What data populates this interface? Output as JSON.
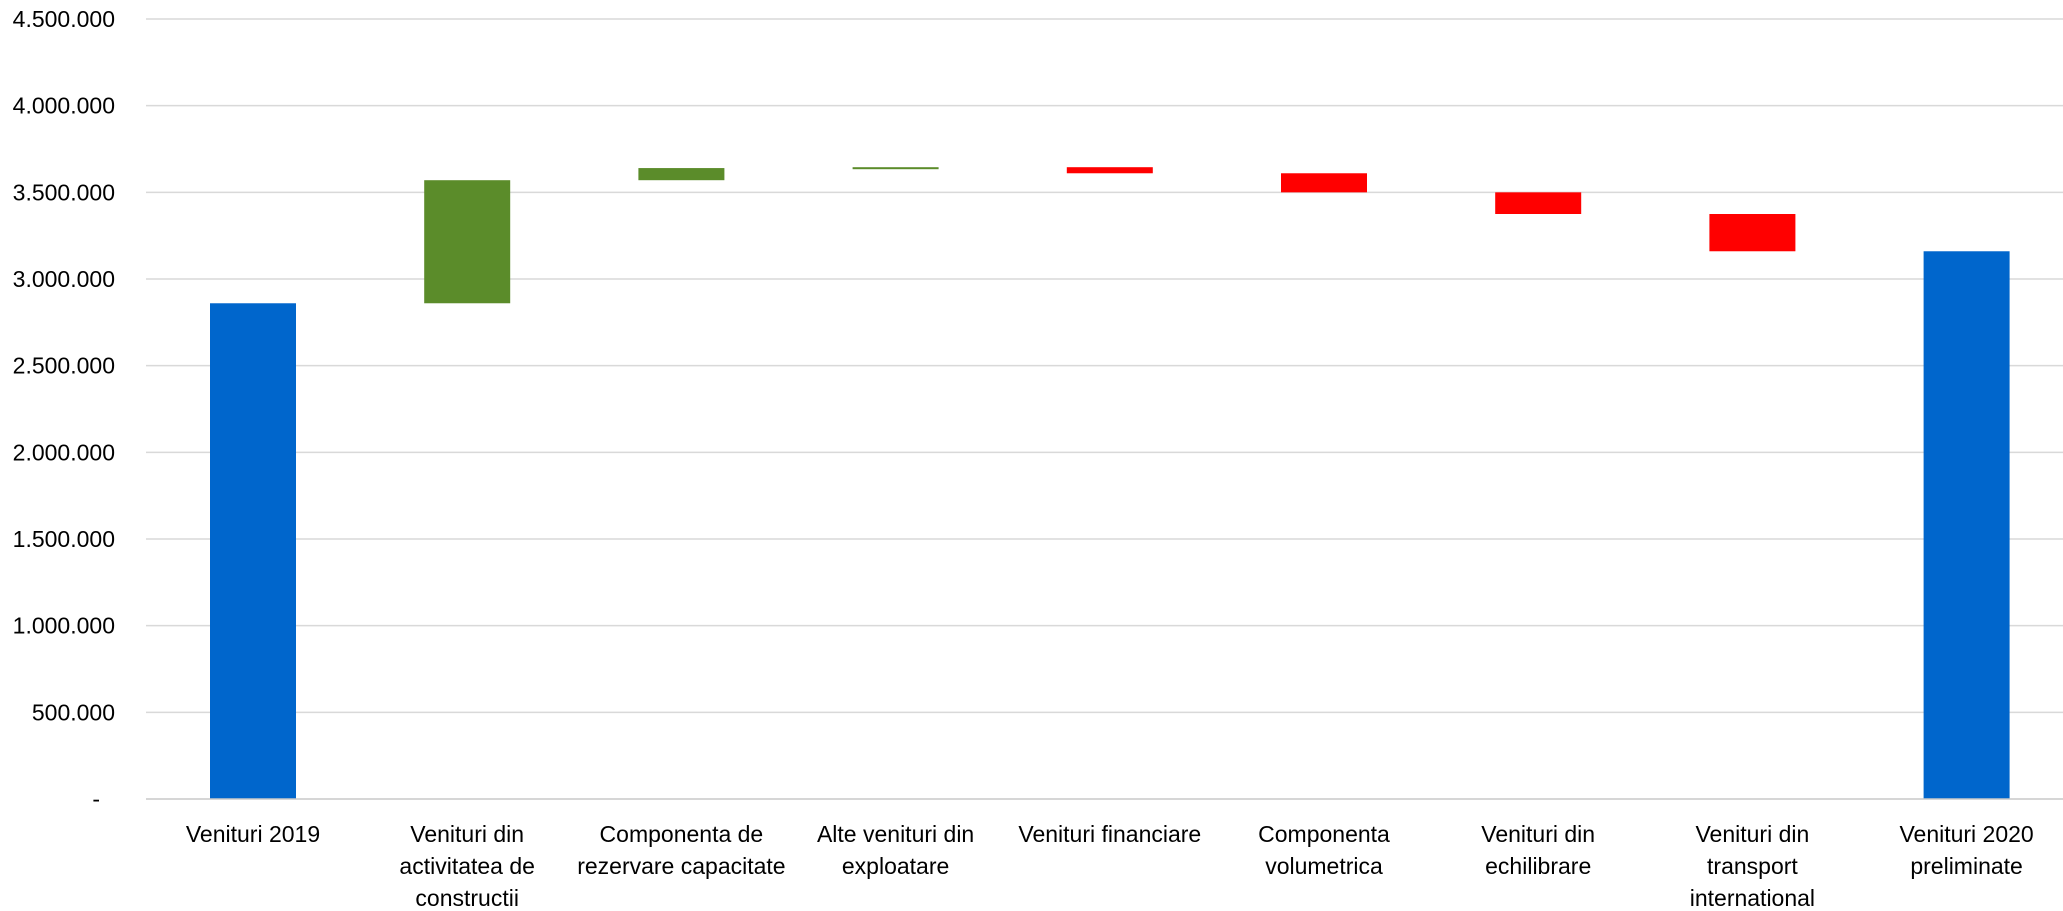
{
  "colors": {
    "total": "#0066CC",
    "increase": "#5B8C2A",
    "decrease": "#FF0000",
    "grid": "#D9D9D9"
  },
  "chart_data": {
    "type": "waterfall",
    "title": "",
    "xlabel": "",
    "ylabel": "",
    "ylim": [
      0,
      4500000
    ],
    "yticks": [
      {
        "value": 0,
        "label": "-"
      },
      {
        "value": 500000,
        "label": "500.000"
      },
      {
        "value": 1000000,
        "label": "1.000.000"
      },
      {
        "value": 1500000,
        "label": "1.500.000"
      },
      {
        "value": 2000000,
        "label": "2.000.000"
      },
      {
        "value": 2500000,
        "label": "2.500.000"
      },
      {
        "value": 3000000,
        "label": "3.000.000"
      },
      {
        "value": 3500000,
        "label": "3.500.000"
      },
      {
        "value": 4000000,
        "label": "4.000.000"
      },
      {
        "value": 4500000,
        "label": "4.500.000"
      }
    ],
    "grid": true,
    "legend": "none",
    "categories": [
      [
        "Venituri 2019"
      ],
      [
        "Venituri din",
        "activitatea de",
        "constructii"
      ],
      [
        "Componenta de",
        "rezervare capacitate"
      ],
      [
        "Alte venituri din",
        "exploatare"
      ],
      [
        "Venituri financiare"
      ],
      [
        "Componenta",
        "volumetrica"
      ],
      [
        "Venituri din",
        "echilibrare"
      ],
      [
        "Venituri din",
        "transport",
        "international"
      ],
      [
        "Venituri 2020",
        "preliminate"
      ]
    ],
    "bars": [
      {
        "kind": "total",
        "start": 0,
        "end": 2860000
      },
      {
        "kind": "increase",
        "start": 2860000,
        "end": 3570000
      },
      {
        "kind": "increase",
        "start": 3570000,
        "end": 3640000
      },
      {
        "kind": "increase",
        "start": 3640000,
        "end": 3645000
      },
      {
        "kind": "decrease",
        "start": 3645000,
        "end": 3610000
      },
      {
        "kind": "decrease",
        "start": 3610000,
        "end": 3500000
      },
      {
        "kind": "decrease",
        "start": 3500000,
        "end": 3375000
      },
      {
        "kind": "decrease",
        "start": 3375000,
        "end": 3160000
      },
      {
        "kind": "total",
        "start": 0,
        "end": 3160000
      }
    ]
  }
}
